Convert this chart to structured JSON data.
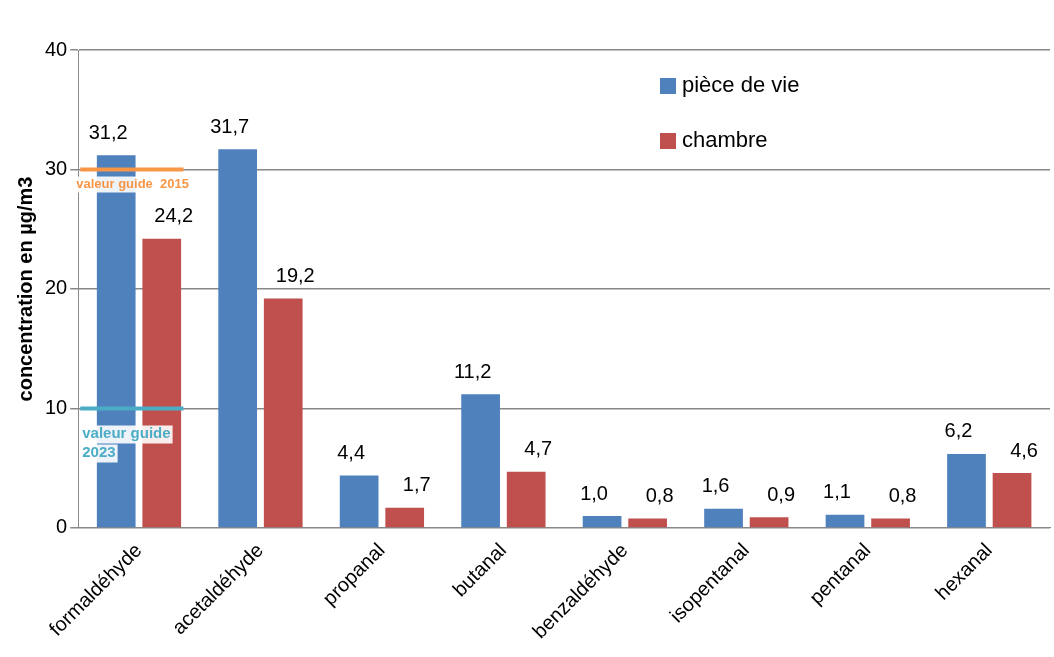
{
  "chart_data": {
    "type": "bar",
    "ylabel": "concentration en µg/m3",
    "categories": [
      "formaldéhyde",
      "acetaldéhyde",
      "propanal",
      "butanal",
      "benzaldéhyde",
      "isopentanal",
      "pentanal",
      "hexanal"
    ],
    "series": [
      {
        "name": "pièce de vie",
        "color": "#4f81bd",
        "values": [
          31.2,
          31.7,
          4.4,
          11.2,
          1.0,
          1.6,
          1.1,
          6.2
        ],
        "value_labels": [
          "31,2",
          "31,7",
          "4,4",
          "11,2",
          "1,0",
          "1,6",
          "1,1",
          "6,2"
        ]
      },
      {
        "name": "chambre",
        "color": "#c0504d",
        "values": [
          24.2,
          19.2,
          1.7,
          4.7,
          0.8,
          0.9,
          0.8,
          4.6
        ],
        "value_labels": [
          "24,2",
          "19,2",
          "1,7",
          "4,7",
          "0,8",
          "0,9",
          "0,8",
          "4,6"
        ]
      }
    ],
    "ylim": [
      0,
      40
    ],
    "yticks": [
      0,
      10,
      20,
      30,
      40
    ],
    "grid": "y",
    "legend": "top right",
    "ref_lines": [
      {
        "axis": "y",
        "value": 30,
        "label": "valeur guide  2015",
        "color": "#f79646"
      },
      {
        "axis": "y",
        "value": 10,
        "label": "valeur guide 2023",
        "color": "#4bacc6"
      }
    ]
  }
}
